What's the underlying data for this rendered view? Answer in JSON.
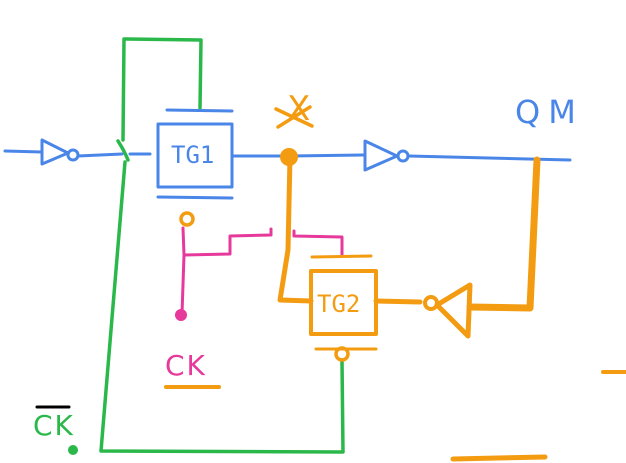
{
  "labels": {
    "x_node": "X",
    "output": "QM",
    "clock": "CK",
    "clock_bar": "CK"
  },
  "gates": {
    "tg1": "TG1",
    "tg2": "TG2"
  },
  "colors": {
    "background": "#ffffff",
    "input_path": "#4a86e8",
    "feedback_path": "#f39c12",
    "clock_wire": "#e6399b",
    "clock_bar_wire": "#2bb84a"
  }
}
